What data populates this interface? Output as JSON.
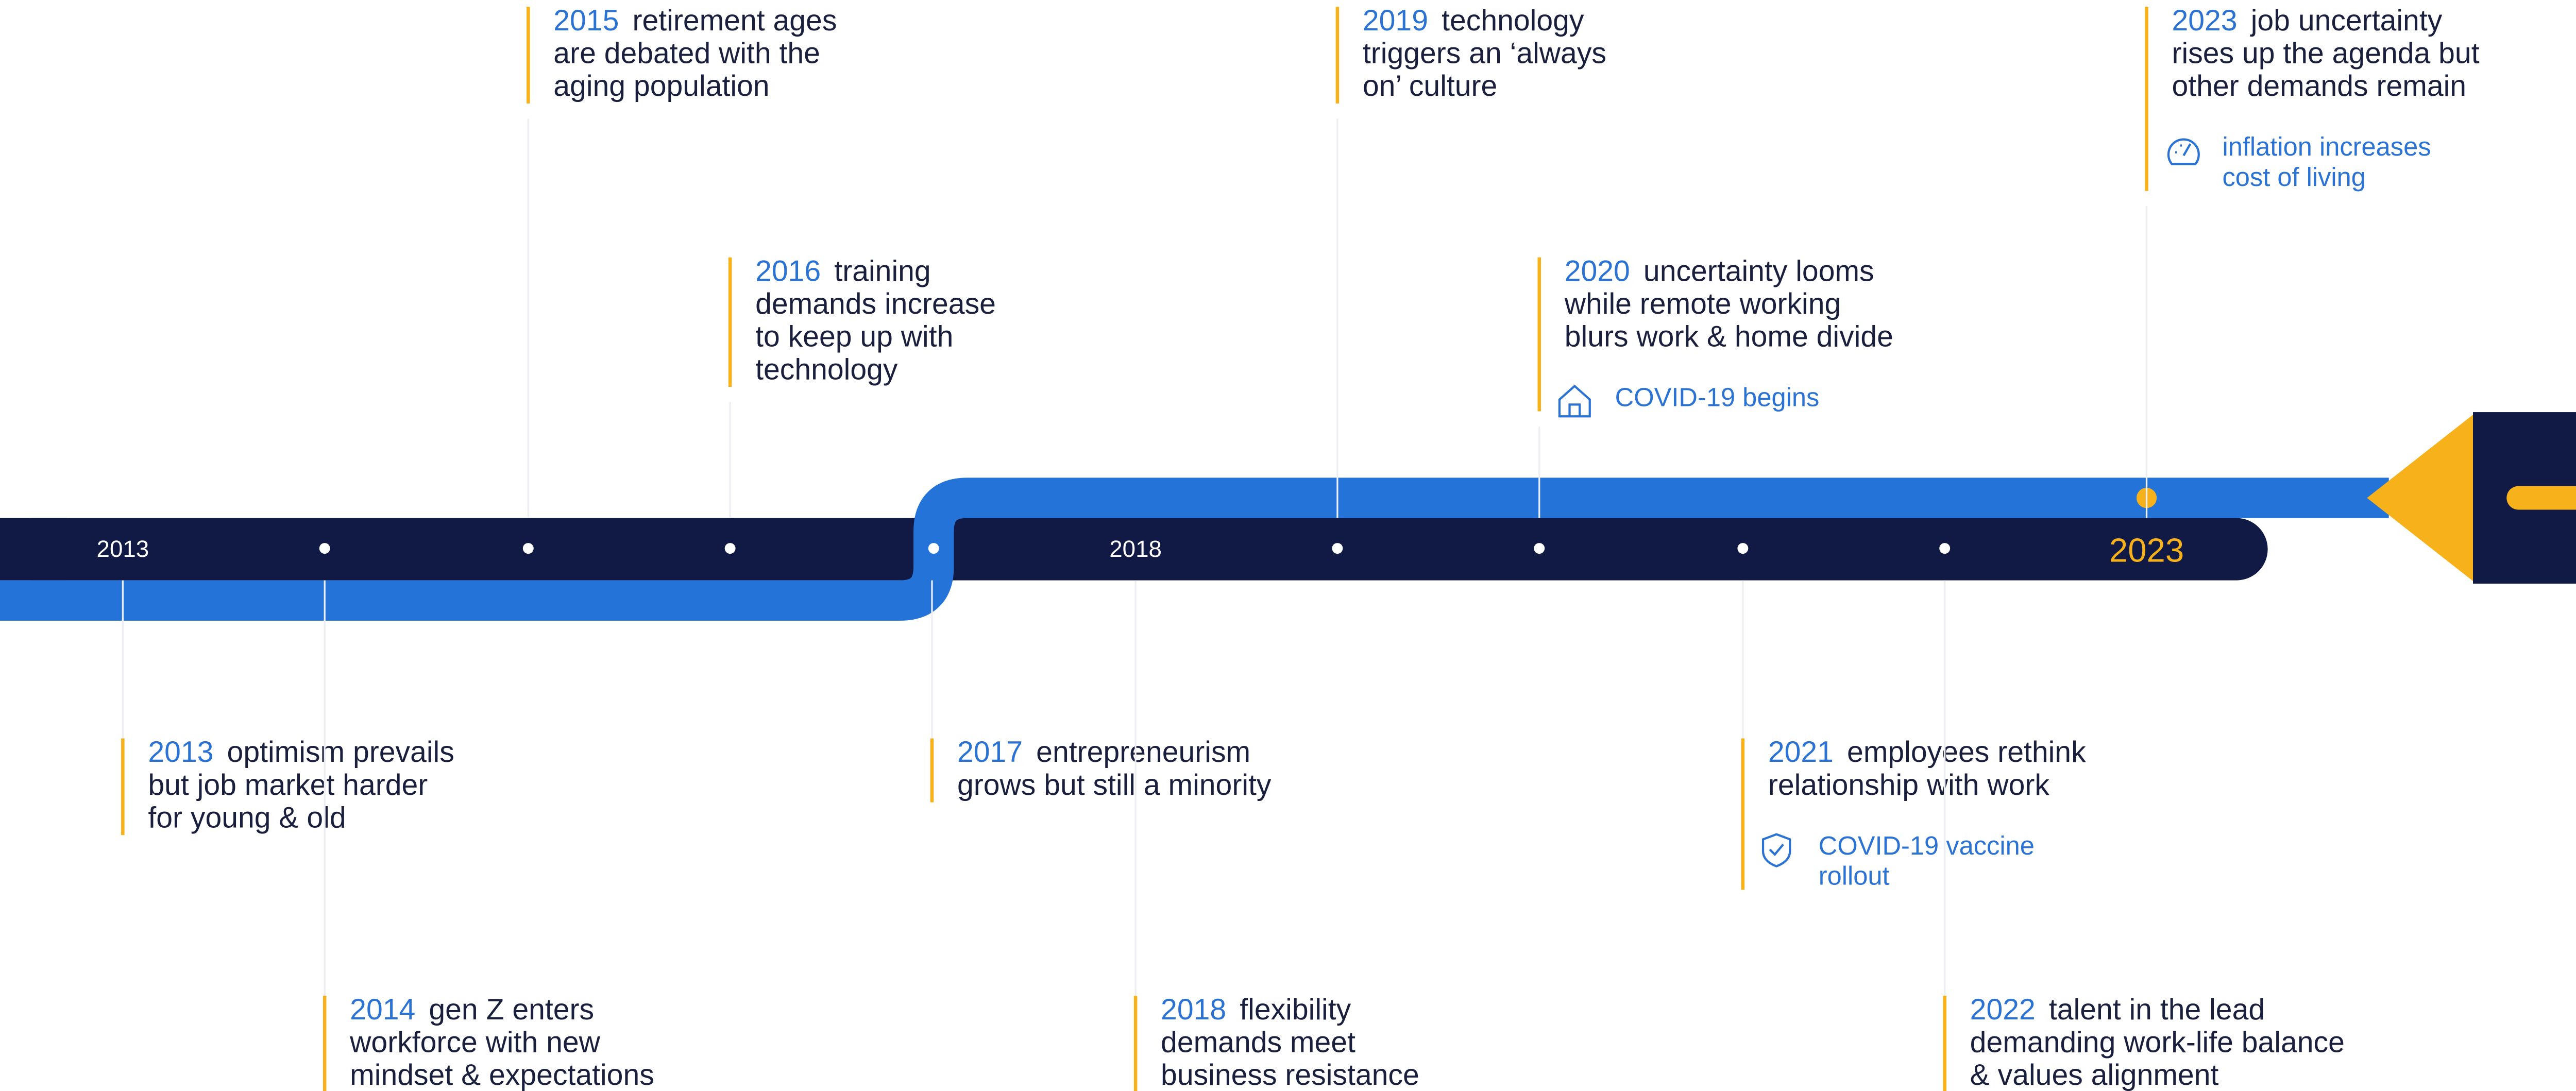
{
  "axis_labels": [
    "2013",
    "2018",
    "2023"
  ],
  "events": [
    {
      "year": "2013",
      "lines": [
        "optimism prevails",
        "but job market harder",
        "for young & old"
      ]
    },
    {
      "year": "2014",
      "lines": [
        "gen Z enters",
        "workforce with new",
        "mindset & expectations"
      ]
    },
    {
      "year": "2015",
      "lines": [
        "retirement ages",
        "are debated with the",
        "aging population"
      ]
    },
    {
      "year": "2016",
      "lines": [
        "training",
        "demands increase",
        "to keep up with",
        "technology"
      ]
    },
    {
      "year": "2017",
      "lines": [
        "entrepreneurism",
        "grows but still a minority"
      ]
    },
    {
      "year": "2018",
      "lines": [
        "flexibility",
        "demands meet",
        "business resistance"
      ]
    },
    {
      "year": "2019",
      "lines": [
        "technology",
        "triggers an ‘always",
        "on’ culture"
      ]
    },
    {
      "year": "2020",
      "lines": [
        "uncertainty looms",
        "while remote working",
        "blurs work & home divide"
      ],
      "note": [
        "COVID-19 begins"
      ]
    },
    {
      "year": "2021",
      "lines": [
        "employees rethink",
        "relationship with work"
      ],
      "note": [
        "COVID-19 vaccine",
        "rollout"
      ]
    },
    {
      "year": "2022",
      "lines": [
        "talent in the lead",
        "demanding work-life balance",
        "& values alignment"
      ]
    },
    {
      "year": "2023",
      "lines": [
        "job uncertainty",
        "rises up the agenda but",
        "other demands remain"
      ],
      "note": [
        "inflation increases",
        "cost of living"
      ]
    }
  ]
}
